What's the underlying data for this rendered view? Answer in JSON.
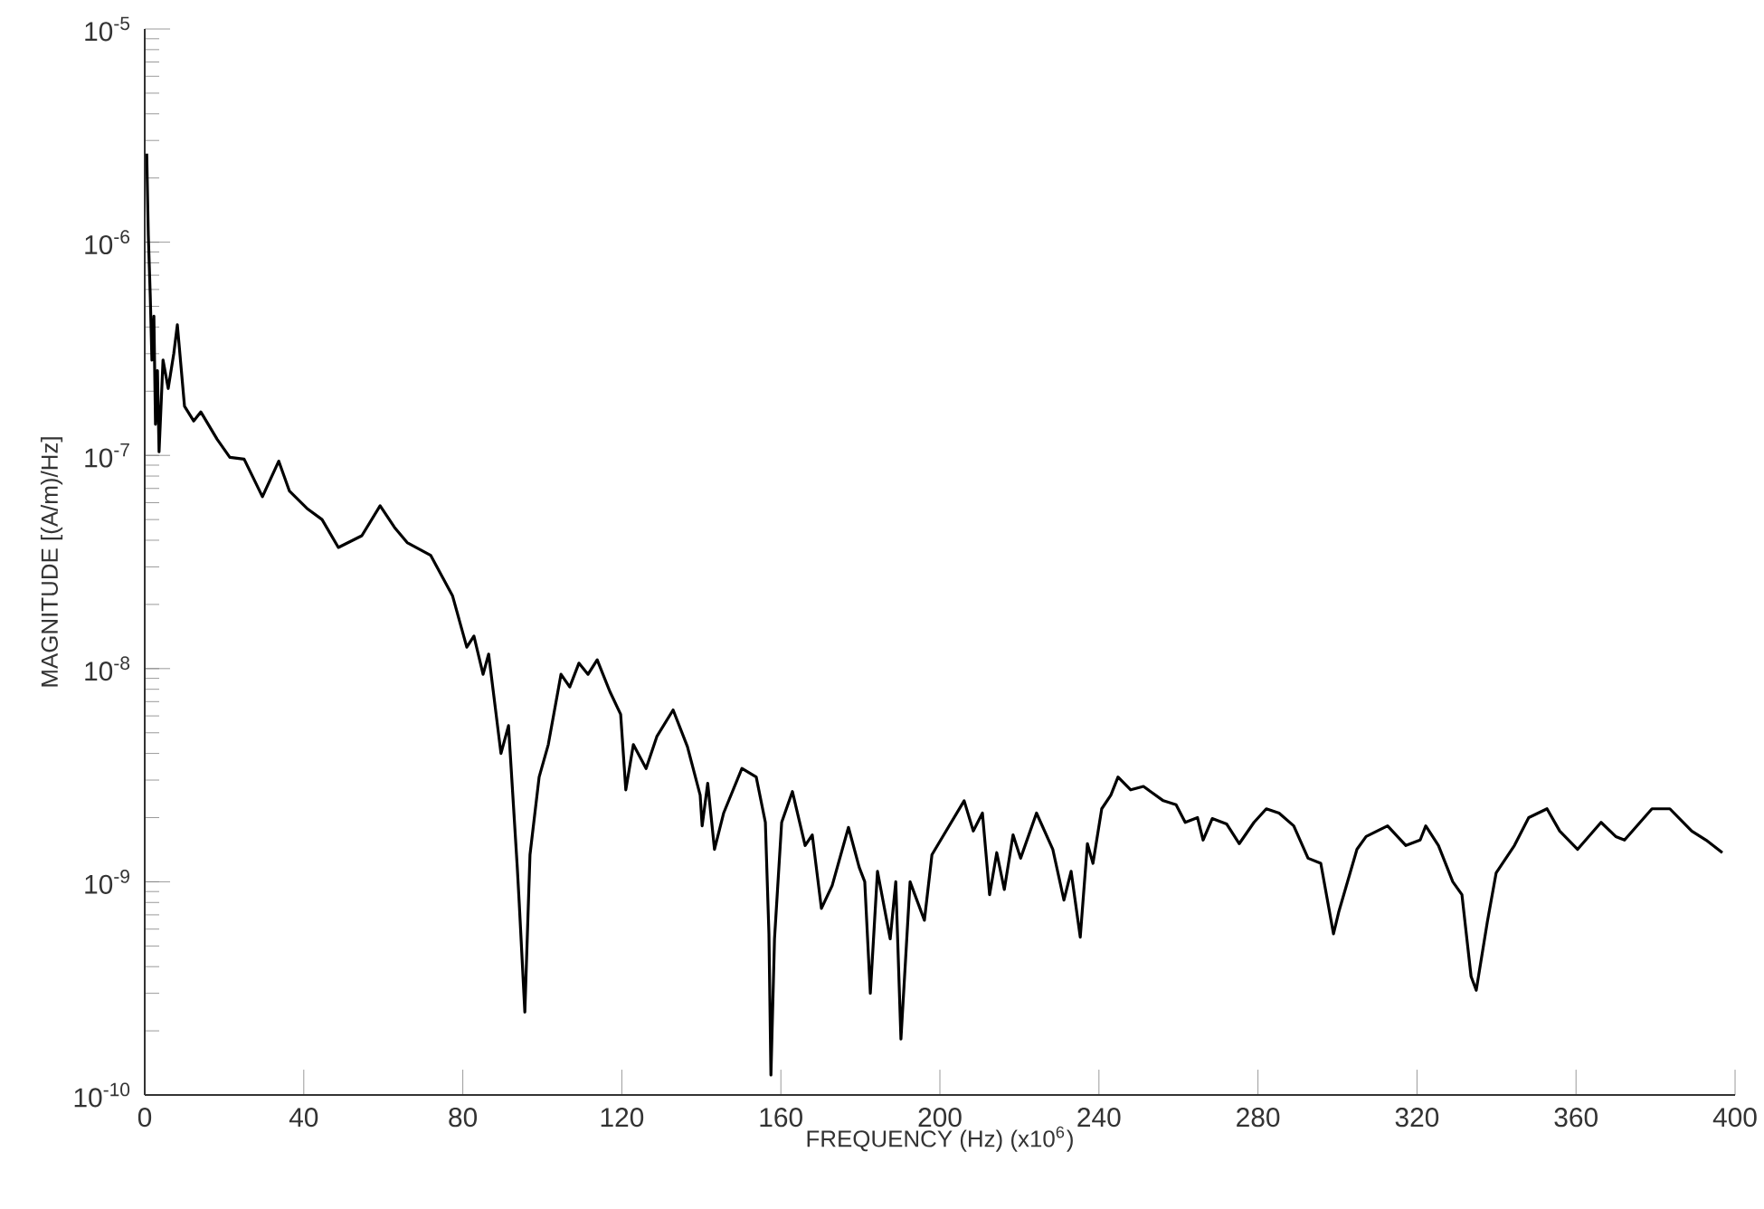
{
  "chart_data": {
    "type": "line",
    "xlabel": "FREQUENCY (Hz) (x10$^{6}$)",
    "ylabel": "MAGNITUDE [(A/m)/Hz]",
    "log": "y",
    "color": "#000000",
    "xlim": [
      0,
      400
    ],
    "ylim": [
      1e-10,
      1e-05
    ],
    "xticks": [
      0,
      40,
      80,
      120,
      160,
      200,
      240,
      280,
      320,
      360,
      400
    ],
    "yticks": [
      {
        "value": 1e-10,
        "label": "10$^{-10}$"
      },
      {
        "value": 1e-09,
        "label": "10$^{-9}$"
      },
      {
        "value": 1e-08,
        "label": "10$^{-8}$"
      },
      {
        "value": 1e-07,
        "label": "10$^{-7}$"
      },
      {
        "value": 1e-06,
        "label": "10$^{-6}$"
      },
      {
        "value": 1e-05,
        "label": "10$^{-5}$"
      }
    ],
    "x": [
      0.5,
      0.9,
      1.4,
      1.8,
      2.3,
      2.7,
      3.2,
      3.6,
      4.6,
      5.9,
      7.3,
      8.2,
      10.0,
      12.3,
      14.1,
      18.2,
      21.4,
      25.0,
      29.6,
      33.7,
      36.4,
      41.0,
      44.6,
      48.7,
      54.6,
      59.2,
      62.8,
      66.0,
      71.9,
      77.4,
      81.0,
      82.8,
      85.1,
      86.5,
      89.6,
      91.5,
      93.7,
      94.2,
      95.6,
      96.9,
      99.2,
      101.5,
      104.7,
      106.9,
      109.2,
      111.5,
      113.8,
      117.0,
      119.7,
      121.0,
      122.9,
      126.1,
      128.8,
      132.9,
      136.5,
      139.7,
      140.2,
      141.6,
      143.3,
      145.6,
      150.2,
      153.8,
      156.1,
      157.0,
      157.5,
      158.4,
      160.2,
      162.9,
      166.1,
      167.9,
      170.2,
      172.9,
      177.0,
      179.7,
      181.1,
      182.5,
      184.3,
      187.5,
      188.9,
      190.2,
      192.5,
      196.1,
      198.0,
      200.2,
      206.1,
      208.4,
      210.7,
      212.5,
      214.3,
      216.2,
      218.4,
      220.3,
      224.3,
      228.4,
      231.2,
      233.0,
      235.3,
      237.1,
      238.5,
      240.7,
      243.0,
      244.8,
      248.0,
      251.2,
      256.2,
      259.4,
      261.7,
      264.8,
      266.2,
      268.5,
      272.1,
      275.3,
      279.0,
      282.1,
      285.3,
      289.0,
      292.6,
      295.8,
      299.0,
      300.3,
      304.9,
      307.2,
      312.6,
      317.2,
      320.8,
      322.2,
      325.4,
      329.0,
      331.3,
      333.6,
      334.9,
      337.7,
      339.9,
      344.5,
      348.1,
      352.7,
      355.9,
      360.4,
      366.3,
      370.0,
      372.2,
      379.1,
      383.6,
      389.1,
      392.7,
      396.8
    ],
    "values": [
      2.6e-06,
      1.08e-06,
      5.5e-07,
      2.8e-07,
      4.5e-07,
      1.4e-07,
      2.5e-07,
      1.04e-07,
      2.8e-07,
      2.06e-07,
      3e-07,
      4.1e-07,
      1.7e-07,
      1.45e-07,
      1.6e-07,
      1.19e-07,
      9.8e-08,
      9.6e-08,
      6.4e-08,
      9.4e-08,
      6.8e-08,
      5.6e-08,
      5e-08,
      3.7e-08,
      4.2e-08,
      5.8e-08,
      4.6e-08,
      3.9e-08,
      3.4e-08,
      2.2e-08,
      1.26e-08,
      1.42e-08,
      9.4e-09,
      1.17e-08,
      4e-09,
      5.4e-09,
      1.17e-09,
      7.9e-10,
      2.45e-10,
      1.34e-09,
      3.1e-09,
      4.4e-09,
      9.4e-09,
      8.2e-09,
      1.06e-08,
      9.4e-09,
      1.1e-08,
      7.8e-09,
      6.1e-09,
      2.7e-09,
      4.4e-09,
      3.4e-09,
      4.8e-09,
      6.4e-09,
      4.3e-09,
      2.55e-09,
      1.83e-09,
      2.9e-09,
      1.42e-09,
      2.1e-09,
      3.4e-09,
      3.1e-09,
      1.9e-09,
      5.7e-10,
      1.24e-10,
      5.4e-10,
      1.9e-09,
      2.65e-09,
      1.48e-09,
      1.66e-09,
      7.5e-10,
      9.6e-10,
      1.8e-09,
      1.17e-09,
      1e-09,
      3e-10,
      1.12e-09,
      5.4e-10,
      1e-09,
      1.83e-10,
      1e-09,
      6.6e-10,
      1.34e-09,
      1.57e-09,
      2.4e-09,
      1.73e-09,
      2.1e-09,
      8.7e-10,
      1.37e-09,
      9.2e-10,
      1.66e-09,
      1.29e-09,
      2.1e-09,
      1.42e-09,
      8.2e-10,
      1.12e-09,
      5.5e-10,
      1.51e-09,
      1.22e-09,
      2.2e-09,
      2.55e-09,
      3.1e-09,
      2.7e-09,
      2.8e-09,
      2.4e-09,
      2.3e-09,
      1.9e-09,
      2e-09,
      1.57e-09,
      1.98e-09,
      1.87e-09,
      1.51e-09,
      1.9e-09,
      2.2e-09,
      2.1e-09,
      1.83e-09,
      1.29e-09,
      1.22e-09,
      5.7e-10,
      7.2e-10,
      1.42e-09,
      1.63e-09,
      1.83e-09,
      1.48e-09,
      1.57e-09,
      1.83e-09,
      1.48e-09,
      1e-09,
      8.7e-10,
      3.6e-10,
      3.1e-10,
      6.5e-10,
      1.1e-09,
      1.48e-09,
      2e-09,
      2.2e-09,
      1.73e-09,
      1.42e-09,
      1.9e-09,
      1.63e-09,
      1.57e-09,
      2.2e-09,
      2.2e-09,
      1.73e-09,
      1.57e-09,
      1.37e-09
    ]
  }
}
